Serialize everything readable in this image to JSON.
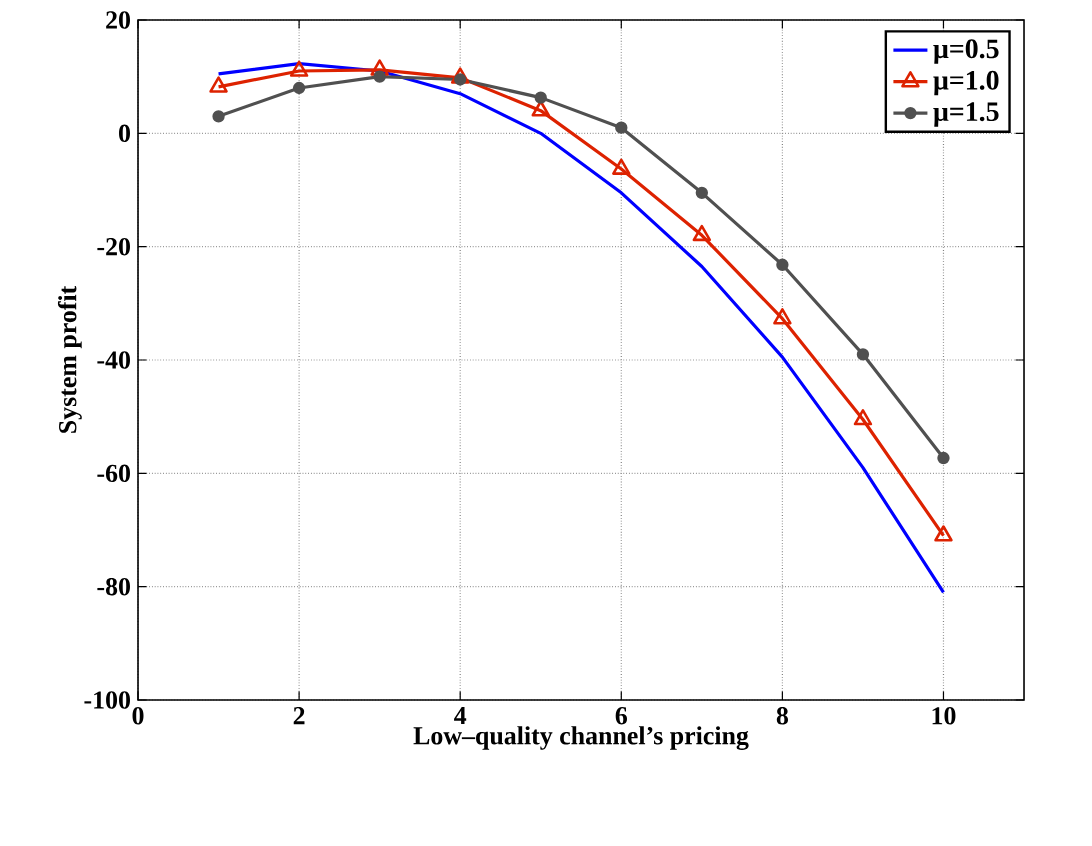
{
  "chart_data": {
    "type": "line",
    "xlabel": "Low–quality channel’s pricing",
    "ylabel": "System profit",
    "x": [
      1,
      2,
      3,
      4,
      5,
      6,
      7,
      8,
      9,
      10
    ],
    "series": [
      {
        "name": "μ=0.5",
        "color": "#0000ff",
        "marker": "none",
        "values": [
          10.5,
          12.3,
          11,
          7,
          0,
          -10.5,
          -23.5,
          -39.5,
          -59,
          -81
        ]
      },
      {
        "name": "μ=1.0",
        "color": "#dd2200",
        "marker": "triangle",
        "values": [
          8.2,
          11,
          11.2,
          9.8,
          4,
          -6.3,
          -18,
          -32.7,
          -50.5,
          -71
        ]
      },
      {
        "name": "μ=1.5",
        "color": "#505050",
        "marker": "circle",
        "values": [
          3,
          8,
          10,
          9.5,
          6.3,
          1,
          -10.5,
          -23.2,
          -39,
          -57.3
        ]
      }
    ],
    "xlim": [
      0,
      11
    ],
    "xticks": [
      0,
      2,
      4,
      6,
      8,
      10
    ],
    "ylim": [
      -100,
      20
    ],
    "yticks": [
      -100,
      -80,
      -60,
      -40,
      -20,
      0,
      20
    ],
    "grid": true,
    "legend": "top right"
  }
}
